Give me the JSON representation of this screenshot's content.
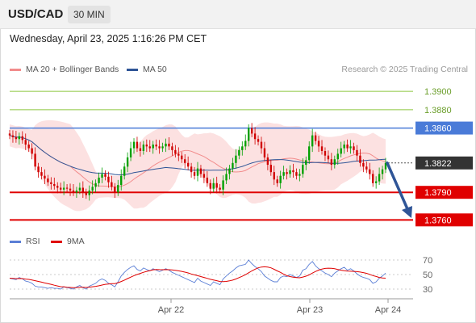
{
  "header": {
    "pair": "USD/CAD",
    "timeframe": "30 MIN",
    "timestamp": "Wednesday, April 23, 2025 1:16:26 PM CET"
  },
  "legend_main": [
    {
      "label": "MA 20 + Bollinger Bands",
      "color": "#f28c8c"
    },
    {
      "label": "MA 50",
      "color": "#2f5597"
    }
  ],
  "credit": "Research © 2025 Trading Central",
  "legend_rsi": [
    {
      "label": "RSI",
      "color": "#5b7fd6"
    },
    {
      "label": "9MA",
      "color": "#e00000"
    }
  ],
  "colors": {
    "up": "#00a000",
    "down": "#d00000",
    "bands": "#f9c9c9",
    "ma20": "#f28c8c",
    "ma50": "#2f5597",
    "target": "#8cc63f",
    "resistance": "#4a7bd8",
    "support": "#e00000",
    "last": "#333333",
    "arrow": "#2f5597"
  },
  "chart_data": [
    {
      "type": "candlestick",
      "title": "USD/CAD 30 MIN",
      "x_ticks": [
        "Apr 22",
        "Apr 23",
        "Apr 24"
      ],
      "ylim": [
        1.3755,
        1.3915
      ],
      "levels": [
        {
          "label": "1.3900",
          "value": 1.39,
          "kind": "target"
        },
        {
          "label": "1.3880",
          "value": 1.388,
          "kind": "target"
        },
        {
          "label": "1.3860",
          "value": 1.386,
          "kind": "resistance"
        },
        {
          "label": "1.3822",
          "value": 1.3822,
          "kind": "last"
        },
        {
          "label": "1.3790",
          "value": 1.379,
          "kind": "support"
        },
        {
          "label": "1.3760",
          "value": 1.376,
          "kind": "support"
        }
      ],
      "forecast_arrow": {
        "from": 1.3822,
        "to": 1.3762
      },
      "series": [
        {
          "name": "MA 20 + Bollinger Bands"
        },
        {
          "name": "MA 50"
        }
      ],
      "closes": [
        1.3852,
        1.385,
        1.3848,
        1.3851,
        1.3847,
        1.3842,
        1.3838,
        1.3832,
        1.3818,
        1.3812,
        1.3808,
        1.3805,
        1.3801,
        1.3799,
        1.3797,
        1.3795,
        1.3793,
        1.3795,
        1.3794,
        1.3792,
        1.379,
        1.3792,
        1.3795,
        1.379,
        1.3787,
        1.3792,
        1.3796,
        1.38,
        1.3806,
        1.381,
        1.3807,
        1.3801,
        1.3796,
        1.379,
        1.3798,
        1.3808,
        1.3818,
        1.3828,
        1.3838,
        1.3845,
        1.3838,
        1.3835,
        1.3842,
        1.384,
        1.3838,
        1.3842,
        1.384,
        1.3838,
        1.384,
        1.3843,
        1.384,
        1.3836,
        1.3832,
        1.383,
        1.3826,
        1.3822,
        1.3818,
        1.3812,
        1.3808,
        1.3816,
        1.381,
        1.3806,
        1.38,
        1.3794,
        1.38,
        1.3795,
        1.3793,
        1.3803,
        1.381,
        1.3816,
        1.3822,
        1.383,
        1.3836,
        1.384,
        1.3846,
        1.386,
        1.3854,
        1.3848,
        1.3845,
        1.3838,
        1.3828,
        1.382,
        1.3812,
        1.3804,
        1.38,
        1.3808,
        1.3812,
        1.381,
        1.3814,
        1.3812,
        1.3808,
        1.381,
        1.382,
        1.3825,
        1.384,
        1.3852,
        1.3846,
        1.384,
        1.3835,
        1.383,
        1.3826,
        1.382,
        1.3826,
        1.3832,
        1.3838,
        1.3842,
        1.3838,
        1.384,
        1.3836,
        1.383,
        1.3822,
        1.3818,
        1.3815,
        1.381,
        1.38,
        1.3802,
        1.381,
        1.3815,
        1.3822
      ]
    },
    {
      "type": "line",
      "title": "RSI",
      "yticks": [
        30,
        50,
        70
      ],
      "ylim": [
        25,
        75
      ],
      "series": [
        {
          "name": "RSI",
          "values": [
            45,
            44,
            43,
            46,
            44,
            41,
            40,
            38,
            34,
            33,
            33,
            32,
            31,
            32,
            31,
            31,
            30,
            33,
            32,
            31,
            30,
            33,
            35,
            32,
            30,
            34,
            36,
            38,
            42,
            44,
            42,
            38,
            36,
            33,
            40,
            48,
            53,
            57,
            60,
            62,
            57,
            55,
            59,
            57,
            55,
            58,
            56,
            54,
            56,
            58,
            56,
            53,
            51,
            49,
            47,
            45,
            43,
            41,
            39,
            45,
            41,
            39,
            37,
            35,
            40,
            38,
            36,
            44,
            48,
            52,
            55,
            59,
            62,
            63,
            64,
            70,
            65,
            61,
            58,
            54,
            48,
            45,
            42,
            40,
            40,
            46,
            48,
            47,
            50,
            48,
            46,
            48,
            56,
            58,
            64,
            68,
            62,
            58,
            55,
            52,
            50,
            47,
            52,
            55,
            58,
            60,
            56,
            58,
            55,
            51,
            48,
            46,
            45,
            43,
            38,
            40,
            45,
            48,
            52
          ]
        },
        {
          "name": "9MA",
          "values": [
            45,
            44.7,
            44.3,
            44.5,
            44.4,
            43.8,
            43.3,
            42.6,
            41.6,
            40.6,
            39.6,
            38.5,
            37.4,
            36.5,
            35.3,
            34.3,
            33.3,
            33.2,
            32.6,
            32.2,
            31.9,
            32.1,
            32.5,
            32.4,
            32.2,
            32.7,
            33.2,
            33.8,
            34.6,
            35.6,
            36.5,
            37.0,
            37.4,
            37.6,
            38.8,
            40.4,
            42.3,
            44.4,
            46.4,
            48.4,
            50.1,
            51.6,
            53.1,
            54.3,
            55.5,
            56.5,
            57.0,
            56.8,
            56.7,
            56.8,
            56.7,
            56.3,
            55.9,
            55.1,
            54.3,
            53.3,
            52.2,
            50.8,
            49.5,
            48.4,
            47.2,
            46.0,
            44.8,
            43.4,
            42.6,
            41.6,
            40.5,
            40.2,
            40.6,
            41.3,
            42.3,
            43.9,
            45.8,
            47.7,
            49.8,
            52.5,
            55.0,
            57.3,
            59.2,
            60.3,
            60.7,
            60.2,
            59.2,
            57.2,
            55.0,
            53.0,
            50.6,
            48.4,
            47.2,
            46.4,
            45.8,
            45.6,
            46.6,
            47.8,
            49.6,
            52.0,
            54.2,
            56.1,
            57.6,
            58.4,
            58.8,
            58.6,
            58.0,
            57.0,
            56.0,
            55.2,
            54.8,
            54.6,
            54.3,
            54.0,
            53.4,
            52.7,
            51.7,
            50.2,
            48.6,
            47.3,
            46.0,
            45.2,
            45.0
          ]
        }
      ]
    }
  ]
}
